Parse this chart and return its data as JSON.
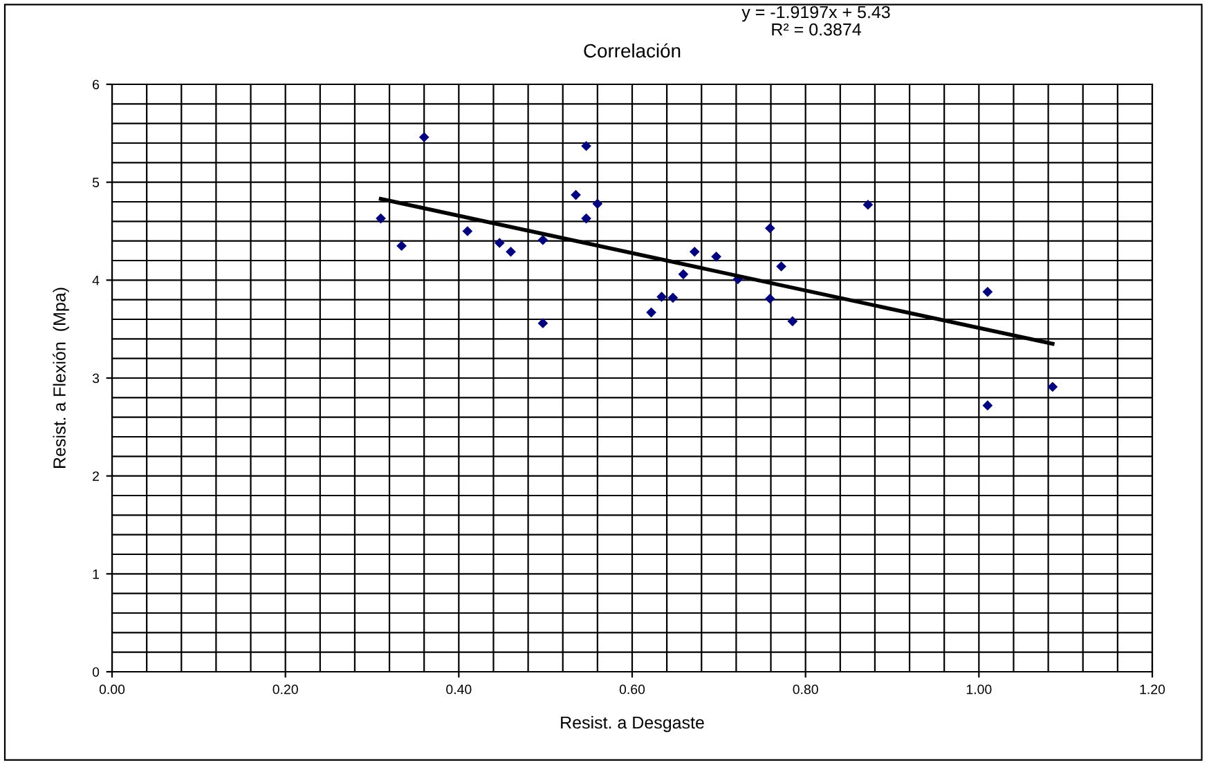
{
  "chart_data": {
    "type": "scatter",
    "title": "Correlación",
    "xlabel": "Resist. a Desgaste",
    "ylabel": "Resist. a Flexión  (Mpa)",
    "annotations": [
      "y = -1.9197x + 5.43\nR² = 0.3874"
    ],
    "series": [
      {
        "color": "#000080",
        "marker": "diamond",
        "x": [
          0.31,
          0.334,
          0.36,
          0.41,
          0.447,
          0.46,
          0.497,
          0.497,
          0.535,
          0.547,
          0.547,
          0.56,
          0.622,
          0.634,
          0.647,
          0.659,
          0.672,
          0.697,
          0.722,
          0.759,
          0.759,
          0.772,
          0.785,
          0.872,
          1.01,
          1.085,
          1.01
        ],
        "values": [
          4.63,
          4.35,
          5.46,
          4.5,
          4.38,
          4.29,
          4.41,
          3.56,
          4.87,
          5.37,
          4.63,
          4.78,
          3.67,
          3.83,
          3.82,
          4.06,
          4.29,
          4.24,
          4.01,
          4.53,
          3.81,
          4.14,
          3.58,
          4.77,
          3.88,
          2.91,
          2.72
        ]
      },
      {
        "type": "line",
        "color": "#000000",
        "marker": "none",
        "x": [
          0.31,
          1.085
        ],
        "values": [
          4.83,
          3.35
        ]
      }
    ],
    "xlim": [
      0,
      1.2
    ],
    "ylim": [
      0,
      6
    ],
    "xticks": [
      {
        "value": 0,
        "label": "0.00"
      },
      {
        "value": 0.04,
        "label": null
      },
      {
        "value": 0.08,
        "label": null
      },
      {
        "value": 0.12,
        "label": null
      },
      {
        "value": 0.16,
        "label": null
      },
      {
        "value": 0.2,
        "label": "0.20"
      },
      {
        "value": 0.24,
        "label": null
      },
      {
        "value": 0.28,
        "label": null
      },
      {
        "value": 0.32,
        "label": null
      },
      {
        "value": 0.36,
        "label": null
      },
      {
        "value": 0.4,
        "label": "0.40"
      },
      {
        "value": 0.44,
        "label": null
      },
      {
        "value": 0.48,
        "label": null
      },
      {
        "value": 0.52,
        "label": null
      },
      {
        "value": 0.56,
        "label": null
      },
      {
        "value": 0.6,
        "label": "0.60"
      },
      {
        "value": 0.64,
        "label": null
      },
      {
        "value": 0.68,
        "label": null
      },
      {
        "value": 0.72,
        "label": null
      },
      {
        "value": 0.76,
        "label": null
      },
      {
        "value": 0.8,
        "label": "0.80"
      },
      {
        "value": 0.84,
        "label": null
      },
      {
        "value": 0.88,
        "label": null
      },
      {
        "value": 0.92,
        "label": null
      },
      {
        "value": 0.96,
        "label": null
      },
      {
        "value": 1.0,
        "label": "1.00"
      },
      {
        "value": 1.04,
        "label": null
      },
      {
        "value": 1.08,
        "label": null
      },
      {
        "value": 1.12,
        "label": null
      },
      {
        "value": 1.16,
        "label": null
      },
      {
        "value": 1.2,
        "label": "1.20"
      }
    ],
    "yticks": [
      0,
      {
        "value": 0.2,
        "label": null
      },
      {
        "value": 0.4,
        "label": null
      },
      {
        "value": 0.6,
        "label": null
      },
      {
        "value": 0.8,
        "label": null
      },
      1,
      {
        "value": 1.2,
        "label": null
      },
      {
        "value": 1.4,
        "label": null
      },
      {
        "value": 1.6,
        "label": null
      },
      {
        "value": 1.8,
        "label": null
      },
      2,
      {
        "value": 2.2,
        "label": null
      },
      {
        "value": 2.4,
        "label": null
      },
      {
        "value": 2.6,
        "label": null
      },
      {
        "value": 2.8,
        "label": null
      },
      3,
      {
        "value": 3.2,
        "label": null
      },
      {
        "value": 3.4,
        "label": null
      },
      {
        "value": 3.6,
        "label": null
      },
      {
        "value": 3.8,
        "label": null
      },
      4,
      {
        "value": 4.2,
        "label": null
      },
      {
        "value": 4.4,
        "label": null
      },
      {
        "value": 4.6,
        "label": null
      },
      {
        "value": 4.8,
        "label": null
      },
      5,
      {
        "value": 5.2,
        "label": null
      },
      {
        "value": 5.4,
        "label": null
      },
      {
        "value": 5.6,
        "label": null
      },
      {
        "value": 5.8,
        "label": null
      },
      6
    ],
    "grid": true,
    "legend": false
  }
}
